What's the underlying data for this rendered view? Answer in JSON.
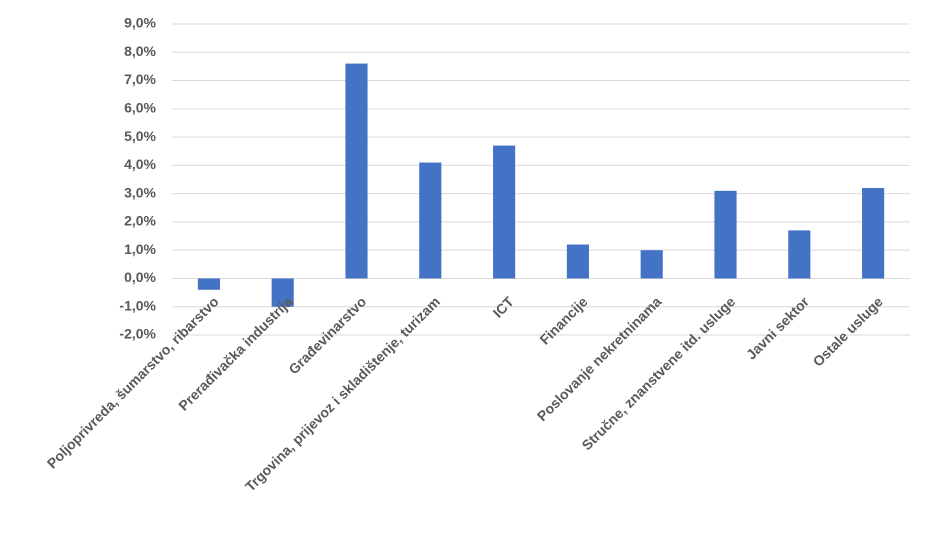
{
  "chart_data": {
    "type": "bar",
    "categories": [
      "Poljoprivreda, šumarstvo, ribarstvo",
      "Prerađivačka industrija",
      "Građevinarstvo",
      "Trgovina, prijevoz i skladištenje, turizam",
      "ICT",
      "Financije",
      "Poslovanje nekretninama",
      "Stručne, znanstvene itd. usluge",
      "Javni sektor",
      "Ostale usluge"
    ],
    "values": [
      -0.4,
      -1.0,
      7.6,
      4.1,
      4.7,
      1.2,
      1.0,
      3.1,
      1.7,
      3.2
    ],
    "color": "#4472c4",
    "ylim": [
      -2,
      9
    ],
    "yticks": [
      {
        "value": -2,
        "label": "-2,0%"
      },
      {
        "value": -1,
        "label": "-1,0%"
      },
      {
        "value": 0,
        "label": "0,0%"
      },
      {
        "value": 1,
        "label": "1,0%"
      },
      {
        "value": 2,
        "label": "2,0%"
      },
      {
        "value": 3,
        "label": "3,0%"
      },
      {
        "value": 4,
        "label": "4,0%"
      },
      {
        "value": 5,
        "label": "5,0%"
      },
      {
        "value": 6,
        "label": "6,0%"
      },
      {
        "value": 7,
        "label": "7,0%"
      },
      {
        "value": 8,
        "label": "8,0%"
      },
      {
        "value": 9,
        "label": "9,0%"
      }
    ],
    "grid": true
  }
}
